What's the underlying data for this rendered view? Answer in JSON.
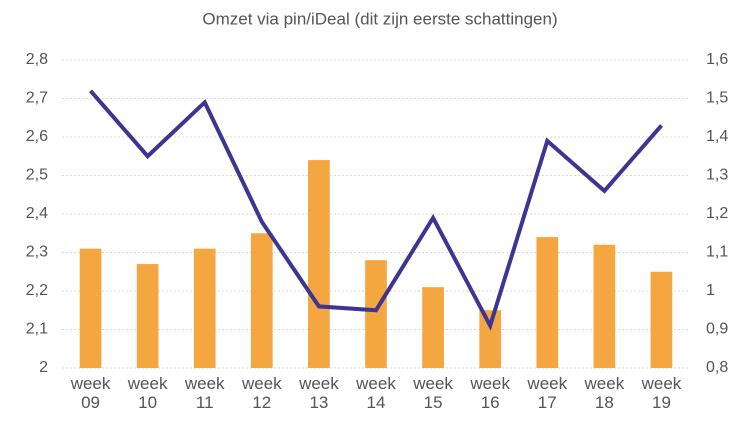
{
  "chart_data": {
    "type": "bar_line",
    "title": "Omzet via pin/iDeal (dit zijn eerste schattingen)",
    "categories": [
      "week 09",
      "week 10",
      "week 11",
      "week 12",
      "week 13",
      "week 14",
      "week 15",
      "week 16",
      "week 17",
      "week 18",
      "week 19"
    ],
    "series": [
      {
        "type": "bar",
        "color": "#f4a640",
        "values": [
          2.31,
          2.27,
          2.31,
          2.35,
          2.54,
          2.28,
          2.21,
          2.15,
          2.34,
          2.32,
          2.25
        ]
      },
      {
        "type": "line",
        "axis": "y2",
        "color": "#3d3590",
        "values": [
          1.52,
          1.35,
          1.49,
          1.18,
          0.96,
          0.95,
          1.19,
          0.91,
          1.39,
          1.26,
          1.43
        ]
      }
    ],
    "ylim": [
      2,
      2.8
    ],
    "yticks": [
      2,
      {
        "value": 2.1,
        "label": "2,1"
      },
      {
        "value": 2.2,
        "label": "2,2"
      },
      {
        "value": 2.3,
        "label": "2,3"
      },
      {
        "value": 2.4,
        "label": "2,4"
      },
      {
        "value": 2.5,
        "label": "2,5"
      },
      {
        "value": 2.6,
        "label": "2,6"
      },
      {
        "value": 2.7,
        "label": "2,7"
      },
      {
        "value": 2.8,
        "label": "2,8"
      }
    ],
    "y2lim": [
      0.8,
      1.6
    ],
    "y2ticks": [
      {
        "value": 0.8,
        "label": "0,8"
      },
      {
        "value": 0.9,
        "label": "0,9"
      },
      1,
      {
        "value": 1.1,
        "label": "1,1"
      },
      {
        "value": 1.2,
        "label": "1,2"
      },
      {
        "value": 1.3,
        "label": "1,3"
      },
      {
        "value": 1.4,
        "label": "1,4"
      },
      {
        "value": 1.5,
        "label": "1,5"
      },
      {
        "value": 1.6,
        "label": "1,6"
      }
    ],
    "grid": true
  }
}
